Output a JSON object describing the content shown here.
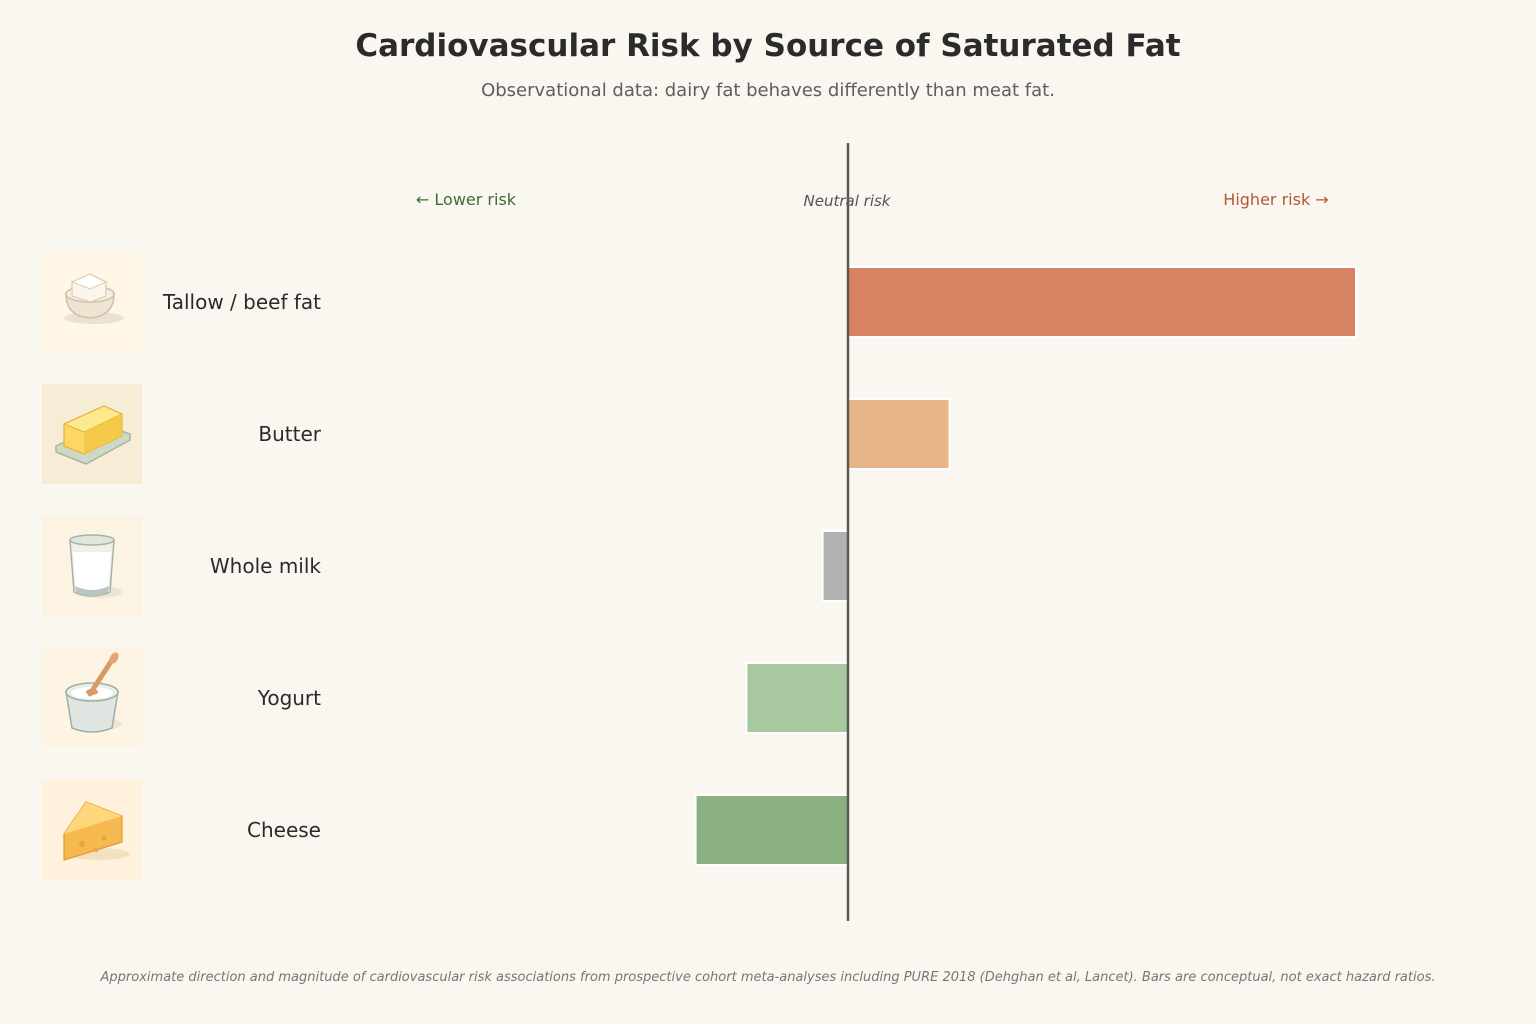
{
  "title": "Cardiovascular Risk by Source of Saturated Fat",
  "subtitle": "Observational data: dairy fat behaves differently than meat fat.",
  "footnote": "Approximate direction and magnitude of cardiovascular risk associations from prospective cohort meta-analyses including PURE 2018 (Dehghan et al, Lancet). Bars are conceptual, not exact hazard ratios.",
  "annotations": {
    "lower": "← Lower risk",
    "neutral": "Neutral risk",
    "higher": "Higher risk →"
  },
  "colors": {
    "background": "#faf6f0",
    "lower": "#3c6e35",
    "higher": "#b4583a",
    "axis": "#5a5a5a"
  },
  "chart_data": {
    "type": "bar",
    "orientation": "horizontal",
    "categories": [
      "Tallow / beef fat",
      "Butter",
      "Whole milk",
      "Yogurt",
      "Cheese"
    ],
    "values": [
      1.0,
      0.2,
      -0.05,
      -0.2,
      -0.3
    ],
    "icons": [
      "tallow-icon",
      "butter-icon",
      "milk-glass-icon",
      "yogurt-icon",
      "cheese-icon"
    ],
    "bar_colors": [
      "#d78262",
      "#e8b48a",
      "#b2b2b2",
      "#a8c8a0",
      "#8bb082"
    ],
    "xlim": [
      -0.8,
      1.0
    ],
    "xlabel": "",
    "ylabel": "",
    "grid": false,
    "legend": "none"
  }
}
